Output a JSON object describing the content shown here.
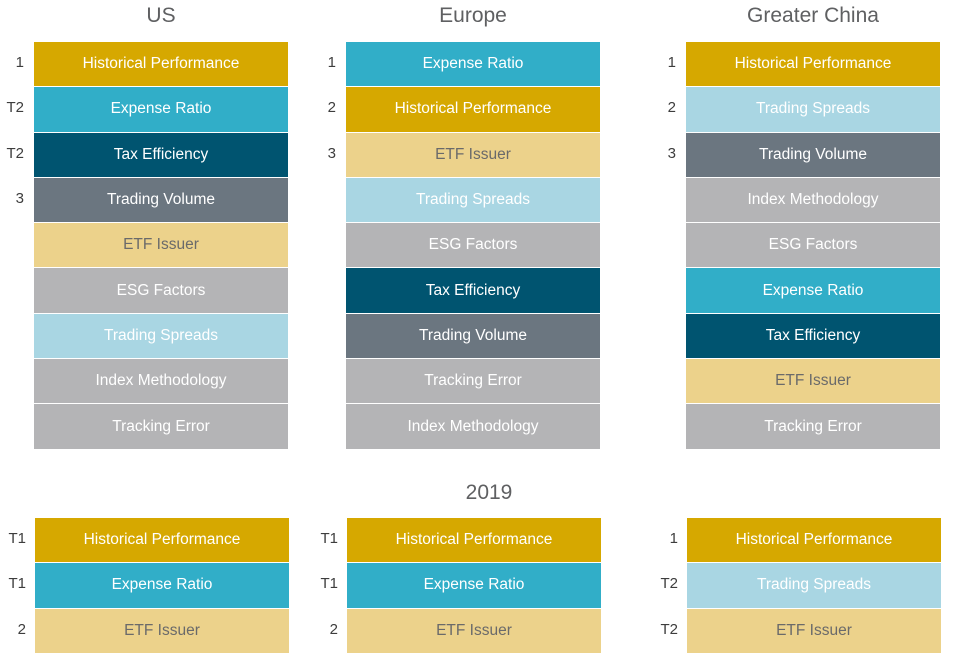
{
  "colors": {
    "Historical Performance": "#d6a800",
    "Expense Ratio": "#31aec8",
    "Tax Efficiency": "#005470",
    "Trading Volume": "#6b7680",
    "ETF Issuer": "#ecd28b",
    "ESG Factors": "#b4b4b6",
    "Trading Spreads": "#a9d6e3",
    "Index Methodology": "#b4b4b6",
    "Tracking Error": "#b4b4b6"
  },
  "regions": [
    "US",
    "Europe",
    "Greater China"
  ],
  "year_label": "2019",
  "rankings": [
    {
      "region": "US",
      "items": [
        {
          "rank": "1",
          "label": "Historical Performance"
        },
        {
          "rank": "T2",
          "label": "Expense Ratio"
        },
        {
          "rank": "T2",
          "label": "Tax Efficiency"
        },
        {
          "rank": "3",
          "label": "Trading Volume"
        },
        {
          "rank": "",
          "label": "ETF Issuer"
        },
        {
          "rank": "",
          "label": "ESG Factors"
        },
        {
          "rank": "",
          "label": "Trading Spreads"
        },
        {
          "rank": "",
          "label": "Index Methodology"
        },
        {
          "rank": "",
          "label": "Tracking Error"
        }
      ]
    },
    {
      "region": "Europe",
      "items": [
        {
          "rank": "1",
          "label": "Expense Ratio"
        },
        {
          "rank": "2",
          "label": "Historical Performance"
        },
        {
          "rank": "3",
          "label": "ETF Issuer"
        },
        {
          "rank": "",
          "label": "Trading Spreads"
        },
        {
          "rank": "",
          "label": "ESG Factors"
        },
        {
          "rank": "",
          "label": "Tax Efficiency"
        },
        {
          "rank": "",
          "label": "Trading Volume"
        },
        {
          "rank": "",
          "label": "Tracking Error"
        },
        {
          "rank": "",
          "label": "Index Methodology"
        }
      ]
    },
    {
      "region": "Greater China",
      "items": [
        {
          "rank": "1",
          "label": "Historical Performance"
        },
        {
          "rank": "2",
          "label": "Trading Spreads"
        },
        {
          "rank": "3",
          "label": "Trading Volume"
        },
        {
          "rank": "",
          "label": "Index Methodology"
        },
        {
          "rank": "",
          "label": "ESG Factors"
        },
        {
          "rank": "",
          "label": "Expense Ratio"
        },
        {
          "rank": "",
          "label": "Tax Efficiency"
        },
        {
          "rank": "",
          "label": "ETF Issuer"
        },
        {
          "rank": "",
          "label": "Tracking Error"
        }
      ]
    }
  ],
  "rankings_2019": [
    {
      "region": "US",
      "items": [
        {
          "rank": "T1",
          "label": "Historical Performance"
        },
        {
          "rank": "T1",
          "label": "Expense Ratio"
        },
        {
          "rank": "2",
          "label": "ETF Issuer"
        }
      ]
    },
    {
      "region": "Europe",
      "items": [
        {
          "rank": "T1",
          "label": "Historical Performance"
        },
        {
          "rank": "T1",
          "label": "Expense Ratio"
        },
        {
          "rank": "2",
          "label": "ETF Issuer"
        }
      ]
    },
    {
      "region": "Greater China",
      "items": [
        {
          "rank": "1",
          "label": "Historical Performance"
        },
        {
          "rank": "T2",
          "label": "Trading Spreads"
        },
        {
          "rank": "T2",
          "label": "ETF Issuer"
        }
      ]
    }
  ]
}
